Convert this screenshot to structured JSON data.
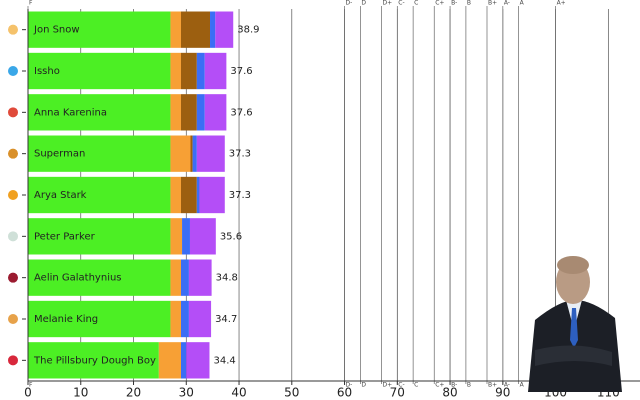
{
  "chart_data": {
    "type": "stacked-barh",
    "categories": [
      "Jon Snow",
      "Issho",
      "Anna Karenina",
      "Superman",
      "Arya Stark",
      "Peter Parker",
      "Aelin Galathynius",
      "Melanie King",
      "The Pillsbury Dough Boy"
    ],
    "series": [
      {
        "color": "#4cef24",
        "values": [
          27,
          27,
          27,
          27,
          27,
          27,
          27,
          27,
          24.8
        ]
      },
      {
        "color": "#f7a035",
        "values": [
          2,
          2,
          2,
          3.8,
          2,
          2.2,
          2,
          2,
          4.2
        ]
      },
      {
        "color": "#9c5f10",
        "values": [
          5.5,
          3,
          3,
          0.4,
          3,
          0,
          0,
          0,
          0
        ]
      },
      {
        "color": "#3b6ef5",
        "values": [
          1,
          1.5,
          1.5,
          0.8,
          0.5,
          1.5,
          1.5,
          1.5,
          1
        ]
      },
      {
        "color": "#b44ef7",
        "values": [
          3.4,
          4.1,
          4.1,
          5.3,
          4.8,
          4.9,
          4.3,
          4.2,
          4.4
        ]
      }
    ],
    "totals": [
      38.9,
      37.6,
      37.6,
      37.3,
      37.3,
      35.6,
      34.8,
      34.7,
      34.4
    ],
    "xlim": [
      0,
      116
    ],
    "xticks": [
      0,
      10,
      20,
      30,
      40,
      50,
      60,
      70,
      80,
      90,
      100,
      110
    ],
    "grades": [
      {
        "value": 0,
        "label": "F"
      },
      {
        "value": 60,
        "label": "D-"
      },
      {
        "value": 63,
        "label": "D"
      },
      {
        "value": 67,
        "label": "D+"
      },
      {
        "value": 70,
        "label": "C-"
      },
      {
        "value": 73,
        "label": "C"
      },
      {
        "value": 77,
        "label": "C+"
      },
      {
        "value": 80,
        "label": "B-"
      },
      {
        "value": 83,
        "label": "B"
      },
      {
        "value": 87,
        "label": "B+"
      },
      {
        "value": 90,
        "label": "A-"
      },
      {
        "value": 93,
        "label": "A"
      },
      {
        "value": 100,
        "label": "A+"
      }
    ],
    "grid": true
  }
}
